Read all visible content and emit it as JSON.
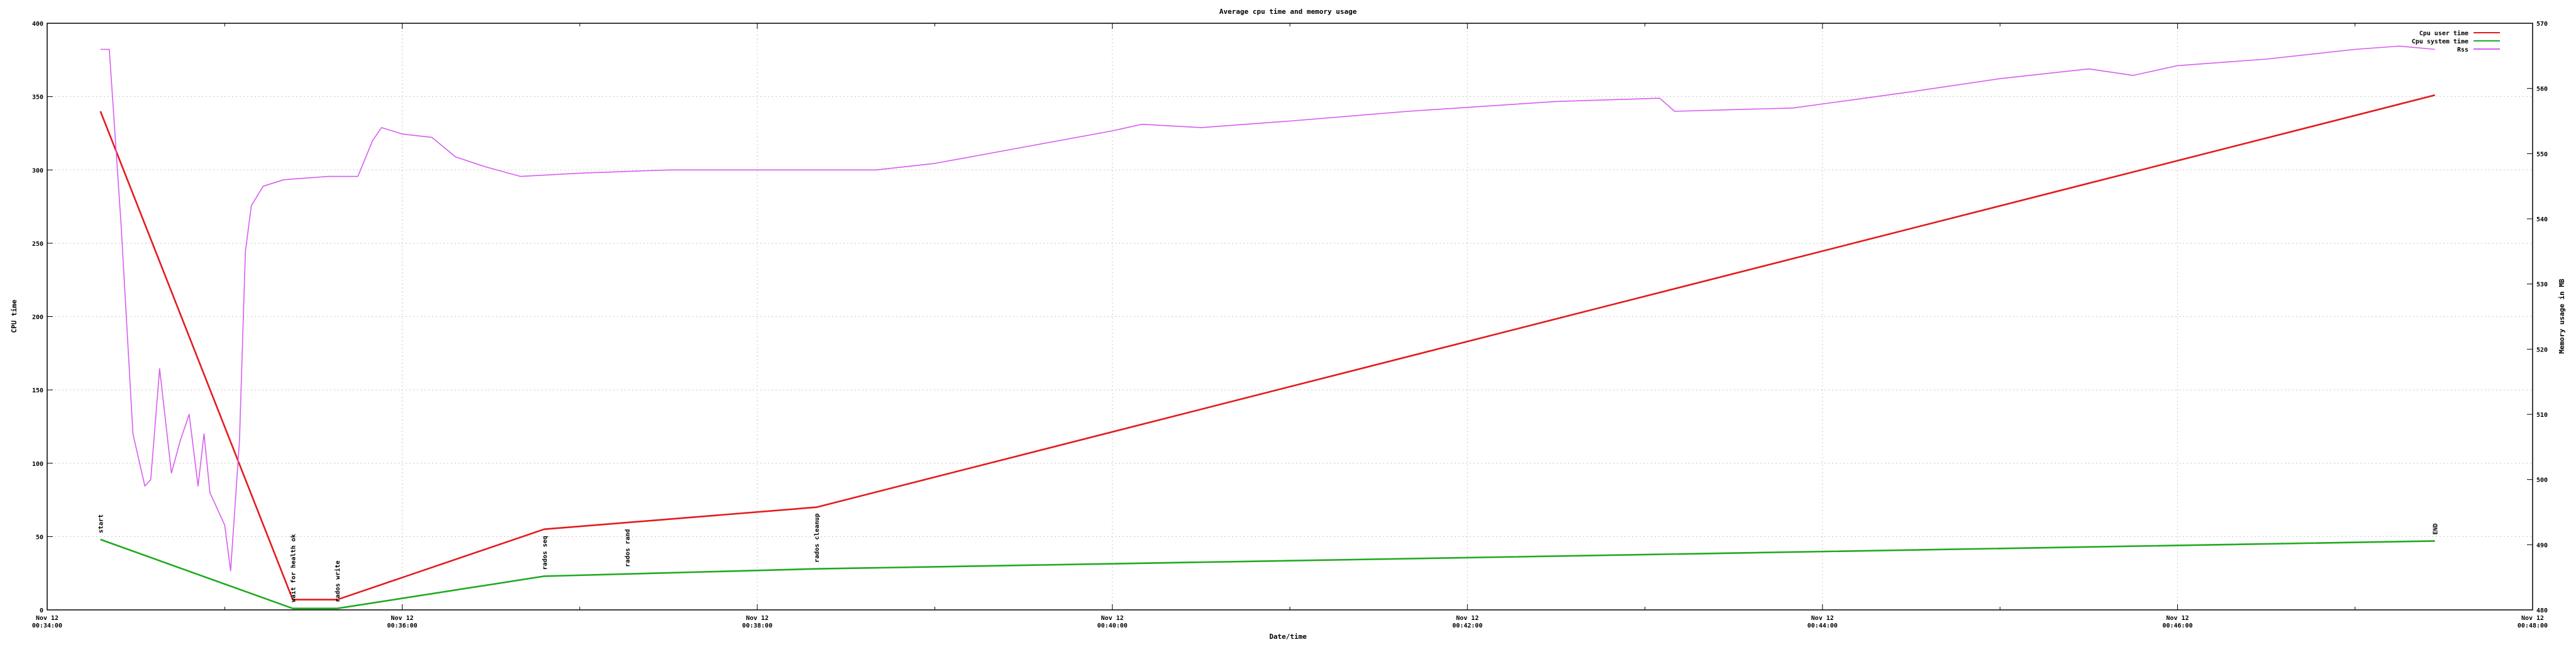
{
  "chart_data": {
    "type": "line",
    "title": "Average cpu time and memory usage",
    "xlabel": "Date/time",
    "ylabel": "CPU time",
    "y2label": "Memory usage in MB",
    "xlim": [
      "2023-11-12T00:34:00",
      "2023-11-12T00:48:00"
    ],
    "ylim": [
      0,
      400
    ],
    "y2lim": [
      480,
      570
    ],
    "grid": true,
    "legend_position": "top-right",
    "x_ticks": [
      {
        "date": "Nov 12",
        "time": "00:34:00",
        "value": "2023-11-12T00:34:00"
      },
      {
        "date": "Nov 12",
        "time": "00:36:00",
        "value": "2023-11-12T00:36:00"
      },
      {
        "date": "Nov 12",
        "time": "00:38:00",
        "value": "2023-11-12T00:38:00"
      },
      {
        "date": "Nov 12",
        "time": "00:40:00",
        "value": "2023-11-12T00:40:00"
      },
      {
        "date": "Nov 12",
        "time": "00:42:00",
        "value": "2023-11-12T00:42:00"
      },
      {
        "date": "Nov 12",
        "time": "00:44:00",
        "value": "2023-11-12T00:44:00"
      },
      {
        "date": "Nov 12",
        "time": "00:46:00",
        "value": "2023-11-12T00:46:00"
      },
      {
        "date": "Nov 12",
        "time": "00:48:00",
        "value": "2023-11-12T00:48:00"
      }
    ],
    "y_ticks": [
      0,
      50,
      100,
      150,
      200,
      250,
      300,
      350,
      400
    ],
    "y2_ticks": [
      480,
      490,
      500,
      510,
      520,
      530,
      540,
      550,
      560,
      570
    ],
    "series": [
      {
        "name": "Cpu user time",
        "axis": "y",
        "color": "#e41a1c",
        "points": [
          {
            "x": "2023-11-12T00:34:18",
            "y": 340
          },
          {
            "x": "2023-11-12T00:35:23",
            "y": 7
          },
          {
            "x": "2023-11-12T00:35:38",
            "y": 7
          },
          {
            "x": "2023-11-12T00:36:48",
            "y": 55
          },
          {
            "x": "2023-11-12T00:38:20",
            "y": 70
          },
          {
            "x": "2023-11-12T00:47:27",
            "y": 351
          }
        ]
      },
      {
        "name": "Cpu system time",
        "axis": "y",
        "color": "#1faa1f",
        "points": [
          {
            "x": "2023-11-12T00:34:18",
            "y": 48
          },
          {
            "x": "2023-11-12T00:35:23",
            "y": 1
          },
          {
            "x": "2023-11-12T00:35:38",
            "y": 1
          },
          {
            "x": "2023-11-12T00:36:48",
            "y": 23
          },
          {
            "x": "2023-11-12T00:38:20",
            "y": 28
          },
          {
            "x": "2023-11-12T00:47:27",
            "y": 47
          }
        ]
      },
      {
        "name": "Rss",
        "axis": "y2",
        "color": "#d75cf0",
        "points": [
          {
            "x": "2023-11-12T00:34:18",
            "y": 566
          },
          {
            "x": "2023-11-12T00:34:21",
            "y": 566
          },
          {
            "x": "2023-11-12T00:34:25",
            "y": 539
          },
          {
            "x": "2023-11-12T00:34:29",
            "y": 507
          },
          {
            "x": "2023-11-12T00:34:33",
            "y": 499
          },
          {
            "x": "2023-11-12T00:34:35",
            "y": 500
          },
          {
            "x": "2023-11-12T00:34:38",
            "y": 517
          },
          {
            "x": "2023-11-12T00:34:42",
            "y": 501
          },
          {
            "x": "2023-11-12T00:34:45",
            "y": 506
          },
          {
            "x": "2023-11-12T00:34:48",
            "y": 510
          },
          {
            "x": "2023-11-12T00:34:51",
            "y": 499
          },
          {
            "x": "2023-11-12T00:34:53",
            "y": 507
          },
          {
            "x": "2023-11-12T00:34:55",
            "y": 498
          },
          {
            "x": "2023-11-12T00:34:58",
            "y": 495
          },
          {
            "x": "2023-11-12T00:35:00",
            "y": 493
          },
          {
            "x": "2023-11-12T00:35:02",
            "y": 486
          },
          {
            "x": "2023-11-12T00:35:05",
            "y": 506
          },
          {
            "x": "2023-11-12T00:35:07",
            "y": 535
          },
          {
            "x": "2023-11-12T00:35:09",
            "y": 542
          },
          {
            "x": "2023-11-12T00:35:13",
            "y": 545
          },
          {
            "x": "2023-11-12T00:35:20",
            "y": 546
          },
          {
            "x": "2023-11-12T00:35:35",
            "y": 546.5
          },
          {
            "x": "2023-11-12T00:35:45",
            "y": 546.5
          },
          {
            "x": "2023-11-12T00:35:50",
            "y": 552
          },
          {
            "x": "2023-11-12T00:35:53",
            "y": 554
          },
          {
            "x": "2023-11-12T00:36:00",
            "y": 553
          },
          {
            "x": "2023-11-12T00:36:10",
            "y": 552.5
          },
          {
            "x": "2023-11-12T00:36:18",
            "y": 549.5
          },
          {
            "x": "2023-11-12T00:36:28",
            "y": 548
          },
          {
            "x": "2023-11-12T00:36:40",
            "y": 546.5
          },
          {
            "x": "2023-11-12T00:37:00",
            "y": 547
          },
          {
            "x": "2023-11-12T00:37:30",
            "y": 547.5
          },
          {
            "x": "2023-11-12T00:38:40",
            "y": 547.5
          },
          {
            "x": "2023-11-12T00:39:00",
            "y": 548.5
          },
          {
            "x": "2023-11-12T00:39:30",
            "y": 551
          },
          {
            "x": "2023-11-12T00:40:00",
            "y": 553.5
          },
          {
            "x": "2023-11-12T00:40:10",
            "y": 554.5
          },
          {
            "x": "2023-11-12T00:40:30",
            "y": 554
          },
          {
            "x": "2023-11-12T00:41:00",
            "y": 555
          },
          {
            "x": "2023-11-12T00:41:40",
            "y": 556.5
          },
          {
            "x": "2023-11-12T00:42:30",
            "y": 558
          },
          {
            "x": "2023-11-12T00:43:05",
            "y": 558.5
          },
          {
            "x": "2023-11-12T00:43:10",
            "y": 556.5
          },
          {
            "x": "2023-11-12T00:43:50",
            "y": 557
          },
          {
            "x": "2023-11-12T00:44:30",
            "y": 559.5
          },
          {
            "x": "2023-11-12T00:45:00",
            "y": 561.5
          },
          {
            "x": "2023-11-12T00:45:30",
            "y": 563
          },
          {
            "x": "2023-11-12T00:45:45",
            "y": 562
          },
          {
            "x": "2023-11-12T00:46:00",
            "y": 563.5
          },
          {
            "x": "2023-11-12T00:46:30",
            "y": 564.5
          },
          {
            "x": "2023-11-12T00:47:00",
            "y": 566
          },
          {
            "x": "2023-11-12T00:47:15",
            "y": 566.5
          },
          {
            "x": "2023-11-12T00:47:27",
            "y": 566
          }
        ]
      }
    ],
    "annotations": [
      {
        "label": "start",
        "x": "2023-11-12T00:34:18",
        "y": 48
      },
      {
        "label": "wait for health ok",
        "x": "2023-11-12T00:35:23",
        "y": 1
      },
      {
        "label": "rados write",
        "x": "2023-11-12T00:35:38",
        "y": 1
      },
      {
        "label": "rados seq",
        "x": "2023-11-12T00:36:48",
        "y": 23
      },
      {
        "label": "rados rand",
        "x": "2023-11-12T00:37:16",
        "y": 25
      },
      {
        "label": "rados cleanup",
        "x": "2023-11-12T00:38:20",
        "y": 28
      },
      {
        "label": "END",
        "x": "2023-11-12T00:47:27",
        "y": 47
      }
    ]
  }
}
